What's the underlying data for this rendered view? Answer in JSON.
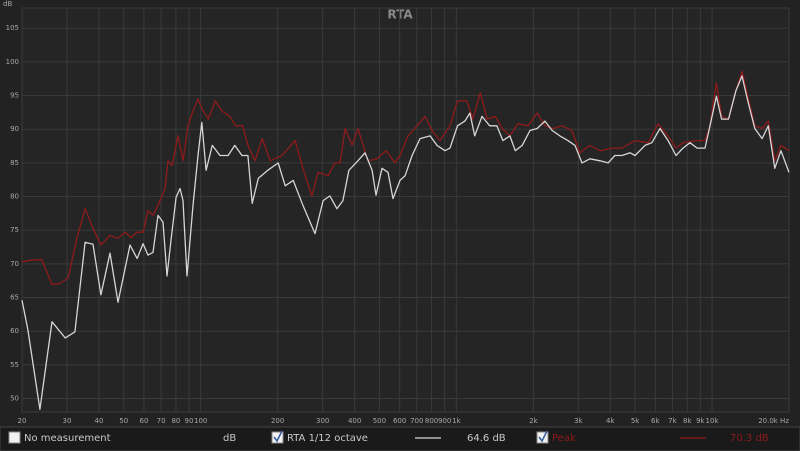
{
  "chart_data": {
    "type": "line",
    "title": "RTA",
    "y_label": "dB",
    "xscale": "log",
    "grid": true,
    "xlim": [
      20,
      20000
    ],
    "ylim": [
      48,
      108
    ],
    "yticks": [
      50,
      55,
      60,
      65,
      70,
      75,
      80,
      85,
      90,
      95,
      100,
      105
    ],
    "xticks": [
      20,
      30,
      40,
      50,
      60,
      70,
      80,
      90,
      100,
      200,
      300,
      400,
      500,
      600,
      700,
      800,
      900,
      {
        "value": 1000,
        "label": "1k"
      },
      {
        "value": 2000,
        "label": "2k"
      },
      {
        "value": 3000,
        "label": "3k"
      },
      {
        "value": 4000,
        "label": "4k"
      },
      {
        "value": 5000,
        "label": "5k"
      },
      {
        "value": 6000,
        "label": "6k"
      },
      {
        "value": 7000,
        "label": "7k"
      },
      {
        "value": 8000,
        "label": "8k"
      },
      {
        "value": 9000,
        "label": "9k"
      },
      {
        "value": 10000,
        "label": "10k"
      },
      {
        "value": 20000,
        "label": "20.0k Hz"
      }
    ],
    "series": [
      {
        "name": "RTA 1/12 octave",
        "color": "#d6d6d6",
        "readout": "64.6 dB",
        "x": [
          20,
          21.1,
          23.5,
          26.2,
          29.5,
          32.2,
          35.3,
          37.9,
          40.7,
          44.2,
          47.5,
          52.9,
          56.4,
          59.5,
          62.2,
          65.1,
          68.1,
          71.2,
          73.8,
          76.5,
          80.1,
          83.0,
          85.3,
          88.4,
          93.3,
          97.6,
          101,
          105,
          111,
          119,
          128,
          136,
          145,
          153,
          159,
          168,
          183,
          201,
          214,
          230,
          251,
          280,
          301,
          320,
          341,
          360,
          380,
          412,
          439,
          468,
          485,
          512,
          540,
          565,
          602,
          630,
          671,
          721,
          789,
          840,
          903,
          944,
          1010,
          1080,
          1130,
          1180,
          1260,
          1350,
          1440,
          1520,
          1620,
          1700,
          1810,
          1940,
          2070,
          2220,
          2370,
          2540,
          2730,
          2910,
          3100,
          3330,
          3650,
          3920,
          4170,
          4440,
          4780,
          5000,
          5470,
          5820,
          6260,
          6730,
          7230,
          7700,
          8200,
          8740,
          9390,
          9820,
          10400,
          10900,
          11600,
          12400,
          13100,
          13800,
          14700,
          15700,
          16600,
          17600,
          18600,
          20000
        ],
        "values": [
          64.6,
          60.2,
          48.4,
          61.4,
          59,
          59.9,
          73.2,
          72.9,
          65.4,
          71.6,
          64.3,
          72.8,
          70.8,
          73,
          71.3,
          71.7,
          77.2,
          76.2,
          68.2,
          73.5,
          79.9,
          81.2,
          79.4,
          68.2,
          78.7,
          86.1,
          91,
          83.9,
          87.6,
          86.1,
          86.1,
          87.6,
          86.1,
          86.1,
          79,
          82.7,
          83.9,
          85,
          81.6,
          82.4,
          78.7,
          74.5,
          79.4,
          80.1,
          78.2,
          79.4,
          83.9,
          85.3,
          86.5,
          83.9,
          80.2,
          84.2,
          83.6,
          79.7,
          82.4,
          83.1,
          86.1,
          88.6,
          89,
          87.6,
          86.8,
          87.2,
          90.5,
          91.2,
          92.4,
          89,
          91.9,
          90.5,
          90.5,
          88.3,
          89,
          86.8,
          87.6,
          89.8,
          90.1,
          91.2,
          89.8,
          89,
          88.3,
          87.6,
          85,
          85.6,
          85.3,
          85,
          86.1,
          86.1,
          86.5,
          86.1,
          87.6,
          88,
          90.1,
          88.3,
          86.1,
          87.2,
          88,
          87.2,
          87.2,
          90.5,
          94.9,
          91.5,
          91.5,
          95.7,
          97.9,
          94.2,
          90.1,
          88.6,
          90.5,
          84.2,
          86.8,
          83.6
        ]
      },
      {
        "name": "Peak",
        "color": "#8e1b1b",
        "readout": "70.3 dB",
        "x": [
          20,
          22.1,
          23.9,
          26.2,
          28.2,
          30.3,
          32.8,
          35.3,
          37.9,
          40.7,
          44.2,
          47.5,
          50.6,
          53.4,
          56.4,
          59.5,
          62.2,
          65.1,
          68.1,
          72.5,
          74.5,
          77.2,
          81.5,
          85.3,
          89.2,
          93.3,
          97.6,
          101,
          107,
          114,
          121,
          130,
          137,
          146,
          153,
          163,
          174,
          187,
          208,
          234,
          251,
          272,
          288,
          315,
          335,
          351,
          367,
          391,
          412,
          451,
          489,
          531,
          575,
          602,
          647,
          702,
          754,
          803,
          863,
          944,
          1010,
          1100,
          1160,
          1240,
          1320,
          1420,
          1510,
          1620,
          1740,
          1910,
          2070,
          2220,
          2390,
          2590,
          2830,
          3040,
          3330,
          3650,
          4060,
          4440,
          5000,
          5620,
          6150,
          6730,
          7230,
          7700,
          8740,
          9390,
          9820,
          10400,
          10900,
          11600,
          12400,
          13100,
          13800,
          14700,
          15700,
          16600,
          17600,
          18600,
          20000
        ],
        "values": [
          70.3,
          70.6,
          70.6,
          66.9,
          67.1,
          67.9,
          73.8,
          78.2,
          75.3,
          72.8,
          74.2,
          73.8,
          74.7,
          73.9,
          74.7,
          74.7,
          77.9,
          77.2,
          78.7,
          81.2,
          85.3,
          84.6,
          89,
          85.3,
          90.5,
          92.7,
          94.5,
          93.1,
          91.5,
          94.2,
          92.7,
          91.9,
          90.5,
          90.5,
          87.6,
          85.3,
          88.6,
          85.3,
          86.1,
          88.3,
          84.2,
          80.1,
          83.6,
          83.1,
          85,
          85,
          90.1,
          87.6,
          90.1,
          85.3,
          85.6,
          86.8,
          85,
          86.1,
          89,
          90.5,
          91.9,
          89.8,
          88.3,
          90.5,
          94.2,
          94.2,
          91.5,
          95.4,
          91.5,
          91.9,
          90.1,
          89,
          90.8,
          90.5,
          92.4,
          90.5,
          90.1,
          90.5,
          89.8,
          86.5,
          87.6,
          86.8,
          87.2,
          87.2,
          88.3,
          88,
          90.8,
          89,
          87.2,
          88,
          88.3,
          88.3,
          90.5,
          96.9,
          91.9,
          91.5,
          95.7,
          98.6,
          94.9,
          90.5,
          90.1,
          91.2,
          85.3,
          87.6,
          86.8
        ]
      }
    ]
  },
  "status_bar": {
    "empty_label": "No measurement",
    "unit": "dB"
  }
}
